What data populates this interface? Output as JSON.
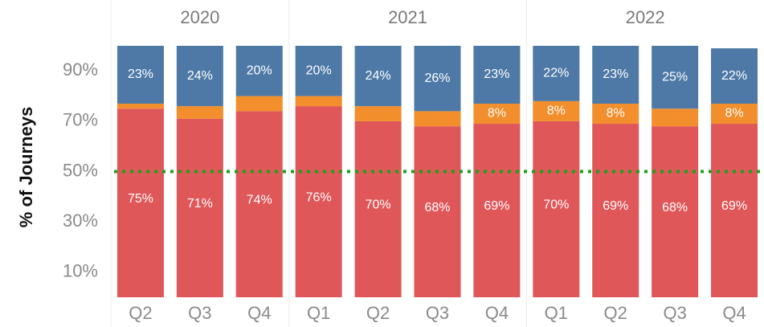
{
  "chart_data": {
    "type": "stacked_bar",
    "y_label": "% of Journeys",
    "groups": [
      {
        "label": "2020",
        "count": 3
      },
      {
        "label": "2021",
        "count": 4
      },
      {
        "label": "2022",
        "count": 4
      }
    ],
    "categories": [
      "Q2",
      "Q3",
      "Q4",
      "Q1",
      "Q2",
      "Q3",
      "Q4",
      "Q1",
      "Q2",
      "Q3",
      "Q4"
    ],
    "series": [
      {
        "color": "#e05759",
        "values": [
          75,
          71,
          74,
          76,
          70,
          68,
          69,
          70,
          69,
          68,
          69
        ],
        "value_labels": [
          "75%",
          "71%",
          "74%",
          "76%",
          "70%",
          "68%",
          "69%",
          "70%",
          "69%",
          "68%",
          "69%"
        ]
      },
      {
        "color": "#f28e2b",
        "values": [
          2,
          5,
          6,
          4,
          6,
          6,
          8,
          8,
          8,
          7,
          8
        ],
        "value_labels": [
          null,
          null,
          null,
          null,
          null,
          null,
          "8%",
          "8%",
          "8%",
          null,
          "8%"
        ]
      },
      {
        "color": "#4e79a7",
        "values": [
          23,
          24,
          20,
          20,
          24,
          26,
          23,
          22,
          23,
          25,
          22
        ],
        "value_labels": [
          "23%",
          "24%",
          "20%",
          "20%",
          "24%",
          "26%",
          "23%",
          "22%",
          "23%",
          "25%",
          "22%"
        ]
      }
    ],
    "ylim": [
      0,
      100
    ],
    "yticks": [
      {
        "value": 10,
        "label": "10%"
      },
      {
        "value": 30,
        "label": "30%"
      },
      {
        "value": 50,
        "label": "50%"
      },
      {
        "value": 70,
        "label": "70%"
      },
      {
        "value": 90,
        "label": "90%"
      }
    ],
    "reference_line": {
      "value": 50,
      "color": "#1aa31a"
    }
  }
}
